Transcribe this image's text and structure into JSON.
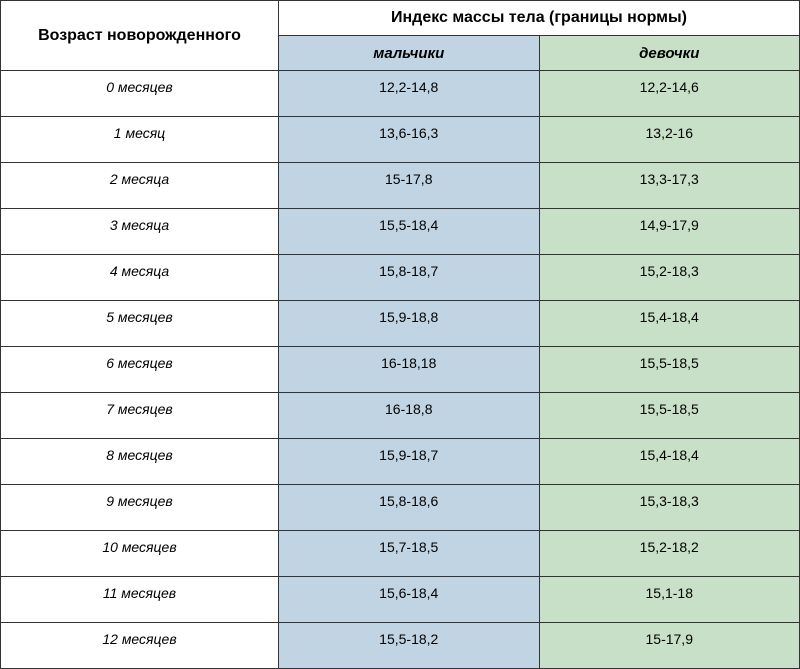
{
  "table": {
    "header_age": "Возраст новорожденного",
    "header_bmi": "Индекс массы тела (границы нормы)",
    "header_boys": "мальчики",
    "header_girls": "девочки",
    "colors": {
      "boys_bg": "#c1d4e3",
      "girls_bg": "#c8e0c7",
      "white_bg": "#ffffff",
      "border": "#333333",
      "text": "#000000"
    },
    "column_widths": {
      "age": 278,
      "boys": 261,
      "girls": 261
    },
    "fonts": {
      "header_size": 16,
      "subheader_size": 15,
      "cell_size": 14,
      "family": "Arial"
    },
    "rows": [
      {
        "age": "0 месяцев",
        "boys": "12,2-14,8",
        "girls": "12,2-14,6"
      },
      {
        "age": "1 месяц",
        "boys": "13,6-16,3",
        "girls": "13,2-16"
      },
      {
        "age": "2 месяца",
        "boys": "15-17,8",
        "girls": "13,3-17,3"
      },
      {
        "age": "3 месяца",
        "boys": "15,5-18,4",
        "girls": "14,9-17,9"
      },
      {
        "age": "4 месяца",
        "boys": "15,8-18,7",
        "girls": "15,2-18,3"
      },
      {
        "age": "5 месяцев",
        "boys": "15,9-18,8",
        "girls": "15,4-18,4"
      },
      {
        "age": "6 месяцев",
        "boys": "16-18,18",
        "girls": "15,5-18,5"
      },
      {
        "age": "7 месяцев",
        "boys": "16-18,8",
        "girls": "15,5-18,5"
      },
      {
        "age": "8 месяцев",
        "boys": "15,9-18,7",
        "girls": "15,4-18,4"
      },
      {
        "age": "9 месяцев",
        "boys": "15,8-18,6",
        "girls": "15,3-18,3"
      },
      {
        "age": "10 месяцев",
        "boys": "15,7-18,5",
        "girls": "15,2-18,2"
      },
      {
        "age": "11 месяцев",
        "boys": "15,6-18,4",
        "girls": "15,1-18"
      },
      {
        "age": "12 месяцев",
        "boys": "15,5-18,2",
        "girls": "15-17,9"
      }
    ]
  }
}
